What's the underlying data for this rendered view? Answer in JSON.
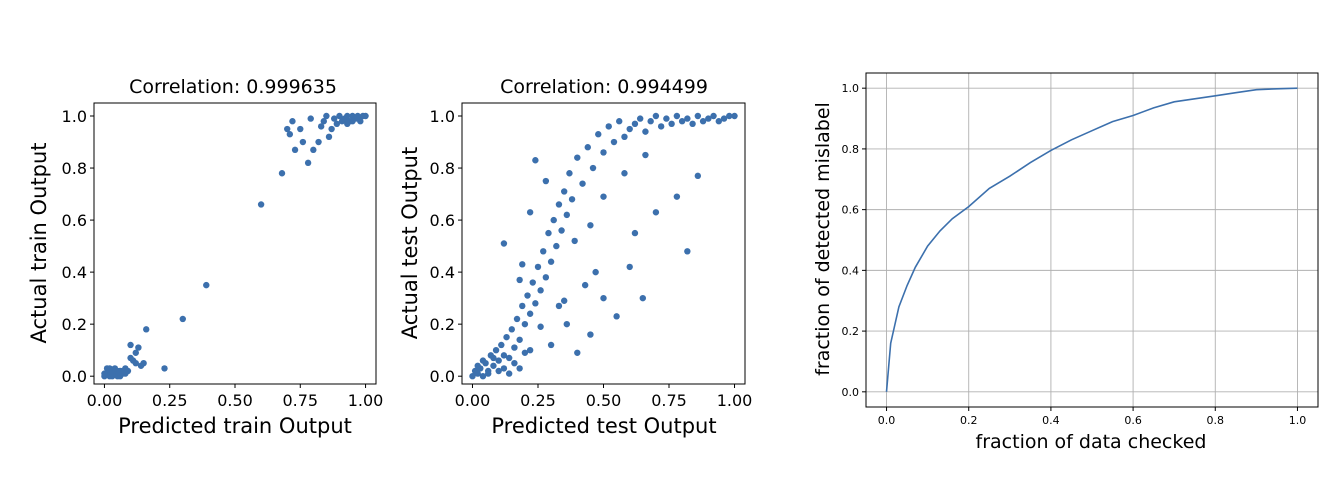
{
  "chart_data": [
    {
      "type": "scatter",
      "title": "Correlation: 0.999635",
      "xlabel": "Predicted train Output",
      "ylabel": "Actual train Output",
      "xlim": [
        -0.04,
        1.04
      ],
      "ylim": [
        -0.03,
        1.05
      ],
      "xticks": [
        "0.00",
        "0.25",
        "0.50",
        "0.75",
        "1.00"
      ],
      "yticks": [
        "0.0",
        "0.2",
        "0.4",
        "0.6",
        "0.8",
        "1.0"
      ],
      "color": "#3c70ad",
      "grid": false,
      "points": [
        [
          0.0,
          0.0
        ],
        [
          0.01,
          0.01
        ],
        [
          0.02,
          0.0
        ],
        [
          0.03,
          0.02
        ],
        [
          0.01,
          0.03
        ],
        [
          0.04,
          0.01
        ],
        [
          0.05,
          0.02
        ],
        [
          0.02,
          0.02
        ],
        [
          0.06,
          0.0
        ],
        [
          0.07,
          0.02
        ],
        [
          0.03,
          0.0
        ],
        [
          0.08,
          0.03
        ],
        [
          0.05,
          0.0
        ],
        [
          0.02,
          0.03
        ],
        [
          0.07,
          0.01
        ],
        [
          0.09,
          0.02
        ],
        [
          0.04,
          0.03
        ],
        [
          0.06,
          0.02
        ],
        [
          0.0,
          0.01
        ],
        [
          0.08,
          0.01
        ],
        [
          0.1,
          0.07
        ],
        [
          0.12,
          0.09
        ],
        [
          0.11,
          0.06
        ],
        [
          0.13,
          0.11
        ],
        [
          0.15,
          0.05
        ],
        [
          0.14,
          0.04
        ],
        [
          0.1,
          0.12
        ],
        [
          0.16,
          0.18
        ],
        [
          0.12,
          0.05
        ],
        [
          0.23,
          0.03
        ],
        [
          0.3,
          0.22
        ],
        [
          0.39,
          0.35
        ],
        [
          0.6,
          0.66
        ],
        [
          0.68,
          0.78
        ],
        [
          0.7,
          0.95
        ],
        [
          0.72,
          0.98
        ],
        [
          0.73,
          0.87
        ],
        [
          0.75,
          0.95
        ],
        [
          0.76,
          0.9
        ],
        [
          0.78,
          0.82
        ],
        [
          0.79,
          0.99
        ],
        [
          0.8,
          0.87
        ],
        [
          0.82,
          0.9
        ],
        [
          0.83,
          0.96
        ],
        [
          0.84,
          0.98
        ],
        [
          0.85,
          1.0
        ],
        [
          0.86,
          0.92
        ],
        [
          0.87,
          0.95
        ],
        [
          0.88,
          0.99
        ],
        [
          0.89,
          0.97
        ],
        [
          0.9,
          1.0
        ],
        [
          0.91,
          0.98
        ],
        [
          0.92,
          0.99
        ],
        [
          0.93,
          1.0
        ],
        [
          0.94,
          0.98
        ],
        [
          0.95,
          1.0
        ],
        [
          0.96,
          0.99
        ],
        [
          0.97,
          1.0
        ],
        [
          0.98,
          0.98
        ],
        [
          0.99,
          1.0
        ],
        [
          1.0,
          1.0
        ],
        [
          0.93,
          0.97
        ],
        [
          0.95,
          0.98
        ],
        [
          0.97,
          0.99
        ],
        [
          0.71,
          0.93
        ]
      ]
    },
    {
      "type": "scatter",
      "title": "Correlation: 0.994499",
      "xlabel": "Predicted test Output",
      "ylabel": "Actual test Output",
      "xlim": [
        -0.04,
        1.04
      ],
      "ylim": [
        -0.03,
        1.05
      ],
      "xticks": [
        "0.00",
        "0.25",
        "0.50",
        "0.75",
        "1.00"
      ],
      "yticks": [
        "0.0",
        "0.2",
        "0.4",
        "0.6",
        "0.8",
        "1.0"
      ],
      "color": "#3c70ad",
      "grid": false,
      "points": [
        [
          0.0,
          0.0
        ],
        [
          0.01,
          0.02
        ],
        [
          0.02,
          0.01
        ],
        [
          0.03,
          0.03
        ],
        [
          0.04,
          0.0
        ],
        [
          0.05,
          0.05
        ],
        [
          0.06,
          0.02
        ],
        [
          0.07,
          0.08
        ],
        [
          0.08,
          0.04
        ],
        [
          0.09,
          0.1
        ],
        [
          0.1,
          0.06
        ],
        [
          0.11,
          0.12
        ],
        [
          0.12,
          0.03
        ],
        [
          0.13,
          0.15
        ],
        [
          0.14,
          0.07
        ],
        [
          0.15,
          0.18
        ],
        [
          0.16,
          0.11
        ],
        [
          0.17,
          0.22
        ],
        [
          0.18,
          0.14
        ],
        [
          0.19,
          0.27
        ],
        [
          0.2,
          0.2
        ],
        [
          0.21,
          0.31
        ],
        [
          0.22,
          0.24
        ],
        [
          0.23,
          0.36
        ],
        [
          0.24,
          0.28
        ],
        [
          0.25,
          0.42
        ],
        [
          0.26,
          0.33
        ],
        [
          0.27,
          0.48
        ],
        [
          0.28,
          0.38
        ],
        [
          0.29,
          0.55
        ],
        [
          0.3,
          0.44
        ],
        [
          0.31,
          0.6
        ],
        [
          0.32,
          0.5
        ],
        [
          0.33,
          0.66
        ],
        [
          0.34,
          0.56
        ],
        [
          0.35,
          0.71
        ],
        [
          0.36,
          0.62
        ],
        [
          0.37,
          0.78
        ],
        [
          0.38,
          0.68
        ],
        [
          0.4,
          0.84
        ],
        [
          0.42,
          0.74
        ],
        [
          0.44,
          0.88
        ],
        [
          0.46,
          0.8
        ],
        [
          0.48,
          0.93
        ],
        [
          0.5,
          0.86
        ],
        [
          0.52,
          0.96
        ],
        [
          0.54,
          0.9
        ],
        [
          0.56,
          0.98
        ],
        [
          0.58,
          0.92
        ],
        [
          0.6,
          0.95
        ],
        [
          0.62,
          0.97
        ],
        [
          0.64,
          0.99
        ],
        [
          0.66,
          0.94
        ],
        [
          0.68,
          0.98
        ],
        [
          0.7,
          1.0
        ],
        [
          0.72,
          0.96
        ],
        [
          0.74,
          0.99
        ],
        [
          0.76,
          0.97
        ],
        [
          0.78,
          1.0
        ],
        [
          0.8,
          0.98
        ],
        [
          0.82,
          0.99
        ],
        [
          0.84,
          0.97
        ],
        [
          0.86,
          1.0
        ],
        [
          0.88,
          0.98
        ],
        [
          0.9,
          0.99
        ],
        [
          0.92,
          1.0
        ],
        [
          0.94,
          0.98
        ],
        [
          0.96,
          0.99
        ],
        [
          0.98,
          1.0
        ],
        [
          1.0,
          1.0
        ],
        [
          0.12,
          0.51
        ],
        [
          0.19,
          0.43
        ],
        [
          0.22,
          0.63
        ],
        [
          0.24,
          0.83
        ],
        [
          0.28,
          0.75
        ],
        [
          0.18,
          0.37
        ],
        [
          0.35,
          0.29
        ],
        [
          0.4,
          0.09
        ],
        [
          0.45,
          0.16
        ],
        [
          0.5,
          0.3
        ],
        [
          0.55,
          0.23
        ],
        [
          0.6,
          0.42
        ],
        [
          0.65,
          0.3
        ],
        [
          0.82,
          0.48
        ],
        [
          0.86,
          0.77
        ],
        [
          0.78,
          0.69
        ],
        [
          0.7,
          0.63
        ],
        [
          0.62,
          0.55
        ],
        [
          0.58,
          0.78
        ],
        [
          0.66,
          0.85
        ],
        [
          0.3,
          0.12
        ],
        [
          0.26,
          0.19
        ],
        [
          0.22,
          0.1
        ],
        [
          0.36,
          0.2
        ],
        [
          0.45,
          0.58
        ],
        [
          0.5,
          0.69
        ],
        [
          0.47,
          0.4
        ],
        [
          0.43,
          0.35
        ],
        [
          0.39,
          0.52
        ],
        [
          0.33,
          0.27
        ],
        [
          0.02,
          0.04
        ],
        [
          0.04,
          0.06
        ],
        [
          0.06,
          0.01
        ],
        [
          0.08,
          0.07
        ],
        [
          0.1,
          0.02
        ],
        [
          0.12,
          0.08
        ],
        [
          0.14,
          0.01
        ],
        [
          0.16,
          0.05
        ],
        [
          0.18,
          0.03
        ],
        [
          0.2,
          0.09
        ]
      ]
    },
    {
      "type": "line",
      "title": "",
      "xlabel": "fraction of data checked",
      "ylabel": "fraction of detected mislabel",
      "xlim": [
        -0.05,
        1.05
      ],
      "ylim": [
        -0.05,
        1.05
      ],
      "xticks": [
        "0.0",
        "0.2",
        "0.4",
        "0.6",
        "0.8",
        "1.0"
      ],
      "yticks": [
        "0.0",
        "0.2",
        "0.4",
        "0.6",
        "0.8",
        "1.0"
      ],
      "color": "#3c70ad",
      "grid": true,
      "series": [
        {
          "x": [
            0.0,
            0.01,
            0.02,
            0.03,
            0.05,
            0.07,
            0.1,
            0.13,
            0.16,
            0.2,
            0.25,
            0.3,
            0.35,
            0.4,
            0.45,
            0.5,
            0.55,
            0.6,
            0.65,
            0.7,
            0.75,
            0.8,
            0.85,
            0.9,
            0.95,
            1.0
          ],
          "y": [
            0.0,
            0.16,
            0.22,
            0.28,
            0.35,
            0.41,
            0.48,
            0.53,
            0.57,
            0.61,
            0.67,
            0.71,
            0.755,
            0.795,
            0.83,
            0.86,
            0.89,
            0.91,
            0.935,
            0.955,
            0.965,
            0.975,
            0.985,
            0.995,
            0.998,
            1.0
          ]
        }
      ]
    }
  ]
}
